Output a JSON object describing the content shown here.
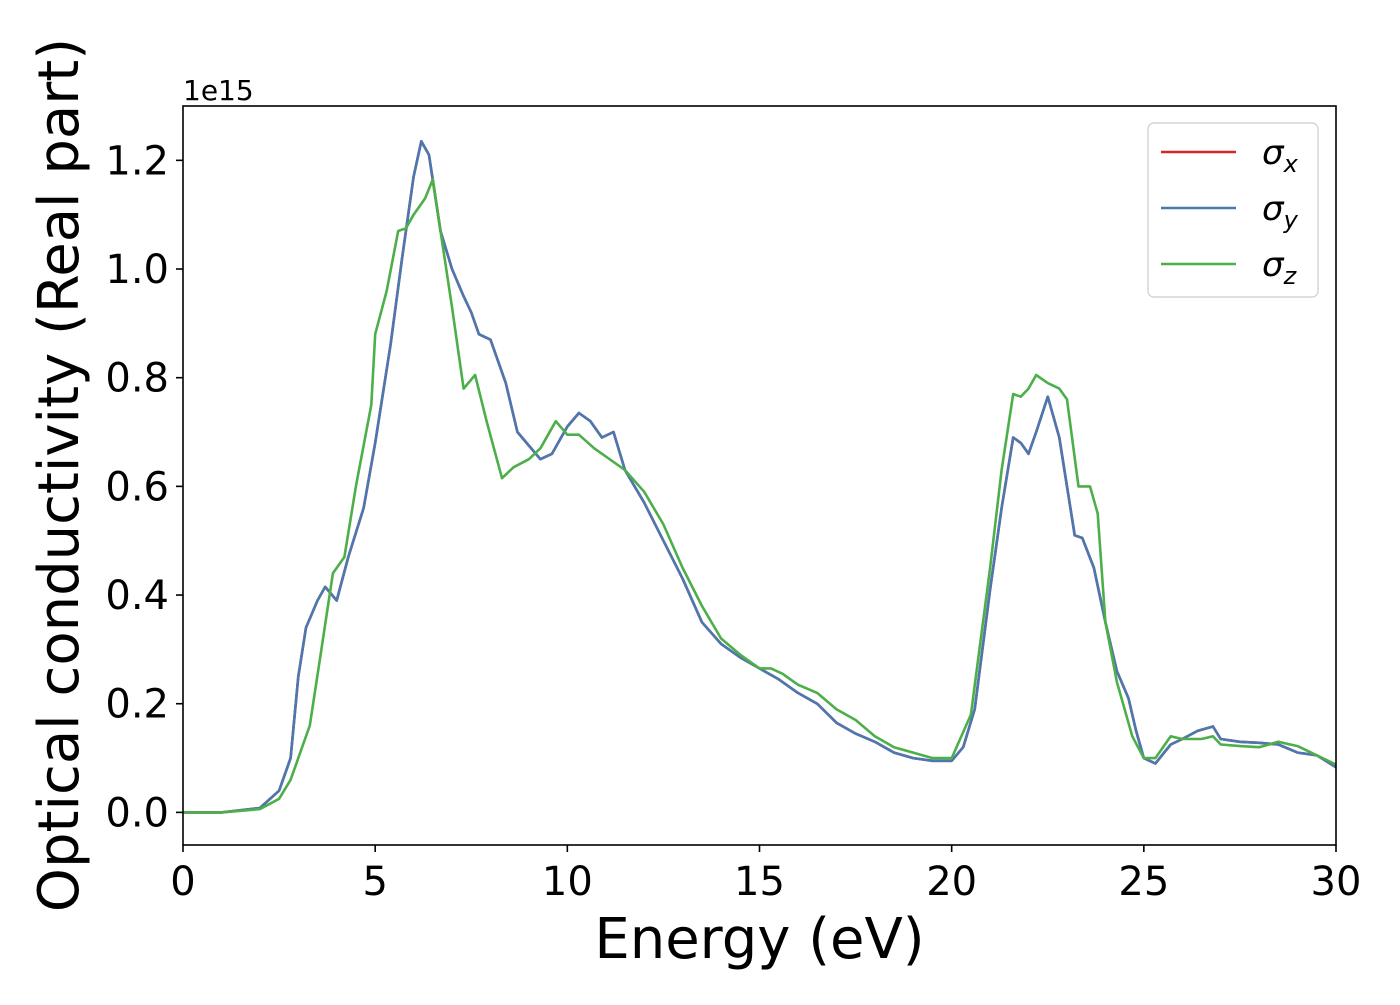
{
  "chart_data": {
    "type": "line",
    "title": "",
    "xlabel": "Energy (eV)",
    "ylabel": "Optical conductivity (Real part)",
    "y_offset_label": "1e15",
    "xlim": [
      0,
      30
    ],
    "ylim": [
      -0.06,
      1.3
    ],
    "xticks": [
      0,
      5,
      10,
      15,
      20,
      25,
      30
    ],
    "xtick_labels": [
      "0",
      "5",
      "10",
      "15",
      "20",
      "25",
      "30"
    ],
    "yticks": [
      0.0,
      0.2,
      0.4,
      0.6,
      0.8,
      1.0,
      1.2
    ],
    "ytick_labels": [
      "0.0",
      "0.2",
      "0.4",
      "0.6",
      "0.8",
      "1.0",
      "1.2"
    ],
    "grid": false,
    "legend": {
      "placement": "top-right",
      "entries": [
        {
          "symbol": "σ",
          "sub": "x",
          "color": "#d62728"
        },
        {
          "symbol": "σ",
          "sub": "y",
          "color": "#4a78b0"
        },
        {
          "symbol": "σ",
          "sub": "z",
          "color": "#4daf4a"
        }
      ]
    },
    "series": [
      {
        "key": "sigma_x",
        "color": "#d62728",
        "points": [
          [
            0,
            0.0
          ],
          [
            1,
            0.0
          ],
          [
            2,
            0.008
          ],
          [
            2.5,
            0.04
          ],
          [
            2.8,
            0.1
          ],
          [
            3.0,
            0.25
          ],
          [
            3.2,
            0.34
          ],
          [
            3.5,
            0.39
          ],
          [
            3.7,
            0.415
          ],
          [
            4.0,
            0.39
          ],
          [
            4.3,
            0.47
          ],
          [
            4.7,
            0.56
          ],
          [
            5.0,
            0.68
          ],
          [
            5.4,
            0.86
          ],
          [
            5.7,
            1.02
          ],
          [
            6.0,
            1.17
          ],
          [
            6.2,
            1.235
          ],
          [
            6.4,
            1.21
          ],
          [
            6.7,
            1.07
          ],
          [
            7.0,
            1.0
          ],
          [
            7.3,
            0.95
          ],
          [
            7.5,
            0.92
          ],
          [
            7.7,
            0.88
          ],
          [
            8.0,
            0.87
          ],
          [
            8.4,
            0.79
          ],
          [
            8.7,
            0.7
          ],
          [
            9.0,
            0.675
          ],
          [
            9.3,
            0.65
          ],
          [
            9.6,
            0.66
          ],
          [
            10.0,
            0.71
          ],
          [
            10.3,
            0.735
          ],
          [
            10.6,
            0.72
          ],
          [
            10.9,
            0.69
          ],
          [
            11.2,
            0.7
          ],
          [
            11.5,
            0.63
          ],
          [
            12.0,
            0.57
          ],
          [
            12.5,
            0.5
          ],
          [
            13.0,
            0.43
          ],
          [
            13.5,
            0.35
          ],
          [
            14.0,
            0.31
          ],
          [
            14.5,
            0.285
          ],
          [
            15.0,
            0.265
          ],
          [
            15.5,
            0.245
          ],
          [
            16.0,
            0.22
          ],
          [
            16.5,
            0.2
          ],
          [
            17.0,
            0.165
          ],
          [
            17.5,
            0.145
          ],
          [
            18.0,
            0.13
          ],
          [
            18.5,
            0.11
          ],
          [
            19.0,
            0.1
          ],
          [
            19.5,
            0.095
          ],
          [
            20.0,
            0.095
          ],
          [
            20.3,
            0.12
          ],
          [
            20.6,
            0.19
          ],
          [
            21.0,
            0.41
          ],
          [
            21.3,
            0.56
          ],
          [
            21.6,
            0.69
          ],
          [
            21.8,
            0.68
          ],
          [
            22.0,
            0.66
          ],
          [
            22.2,
            0.7
          ],
          [
            22.5,
            0.765
          ],
          [
            22.8,
            0.69
          ],
          [
            23.0,
            0.6
          ],
          [
            23.2,
            0.51
          ],
          [
            23.4,
            0.505
          ],
          [
            23.7,
            0.45
          ],
          [
            24.0,
            0.35
          ],
          [
            24.3,
            0.26
          ],
          [
            24.6,
            0.21
          ],
          [
            24.8,
            0.15
          ],
          [
            25.0,
            0.1
          ],
          [
            25.3,
            0.09
          ],
          [
            25.7,
            0.125
          ],
          [
            26.0,
            0.135
          ],
          [
            26.4,
            0.15
          ],
          [
            26.8,
            0.158
          ],
          [
            27.0,
            0.135
          ],
          [
            27.5,
            0.13
          ],
          [
            28.0,
            0.128
          ],
          [
            28.5,
            0.125
          ],
          [
            29.0,
            0.11
          ],
          [
            29.5,
            0.105
          ],
          [
            30.0,
            0.083
          ]
        ]
      },
      {
        "key": "sigma_y",
        "color": "#4a78b0",
        "points": [
          [
            0,
            0.0
          ],
          [
            1,
            0.0
          ],
          [
            2,
            0.008
          ],
          [
            2.5,
            0.04
          ],
          [
            2.8,
            0.1
          ],
          [
            3.0,
            0.25
          ],
          [
            3.2,
            0.34
          ],
          [
            3.5,
            0.39
          ],
          [
            3.7,
            0.415
          ],
          [
            4.0,
            0.39
          ],
          [
            4.3,
            0.47
          ],
          [
            4.7,
            0.56
          ],
          [
            5.0,
            0.68
          ],
          [
            5.4,
            0.86
          ],
          [
            5.7,
            1.02
          ],
          [
            6.0,
            1.17
          ],
          [
            6.2,
            1.235
          ],
          [
            6.4,
            1.21
          ],
          [
            6.7,
            1.07
          ],
          [
            7.0,
            1.0
          ],
          [
            7.3,
            0.95
          ],
          [
            7.5,
            0.92
          ],
          [
            7.7,
            0.88
          ],
          [
            8.0,
            0.87
          ],
          [
            8.4,
            0.79
          ],
          [
            8.7,
            0.7
          ],
          [
            9.0,
            0.675
          ],
          [
            9.3,
            0.65
          ],
          [
            9.6,
            0.66
          ],
          [
            10.0,
            0.71
          ],
          [
            10.3,
            0.735
          ],
          [
            10.6,
            0.72
          ],
          [
            10.9,
            0.69
          ],
          [
            11.2,
            0.7
          ],
          [
            11.5,
            0.63
          ],
          [
            12.0,
            0.57
          ],
          [
            12.5,
            0.5
          ],
          [
            13.0,
            0.43
          ],
          [
            13.5,
            0.35
          ],
          [
            14.0,
            0.31
          ],
          [
            14.5,
            0.285
          ],
          [
            15.0,
            0.265
          ],
          [
            15.5,
            0.245
          ],
          [
            16.0,
            0.22
          ],
          [
            16.5,
            0.2
          ],
          [
            17.0,
            0.165
          ],
          [
            17.5,
            0.145
          ],
          [
            18.0,
            0.13
          ],
          [
            18.5,
            0.11
          ],
          [
            19.0,
            0.1
          ],
          [
            19.5,
            0.095
          ],
          [
            20.0,
            0.095
          ],
          [
            20.3,
            0.12
          ],
          [
            20.6,
            0.19
          ],
          [
            21.0,
            0.41
          ],
          [
            21.3,
            0.56
          ],
          [
            21.6,
            0.69
          ],
          [
            21.8,
            0.68
          ],
          [
            22.0,
            0.66
          ],
          [
            22.2,
            0.7
          ],
          [
            22.5,
            0.765
          ],
          [
            22.8,
            0.69
          ],
          [
            23.0,
            0.6
          ],
          [
            23.2,
            0.51
          ],
          [
            23.4,
            0.505
          ],
          [
            23.7,
            0.45
          ],
          [
            24.0,
            0.35
          ],
          [
            24.3,
            0.26
          ],
          [
            24.6,
            0.21
          ],
          [
            24.8,
            0.15
          ],
          [
            25.0,
            0.1
          ],
          [
            25.3,
            0.09
          ],
          [
            25.7,
            0.125
          ],
          [
            26.0,
            0.135
          ],
          [
            26.4,
            0.15
          ],
          [
            26.8,
            0.158
          ],
          [
            27.0,
            0.135
          ],
          [
            27.5,
            0.13
          ],
          [
            28.0,
            0.128
          ],
          [
            28.5,
            0.125
          ],
          [
            29.0,
            0.11
          ],
          [
            29.5,
            0.105
          ],
          [
            30.0,
            0.083
          ]
        ]
      },
      {
        "key": "sigma_z",
        "color": "#4daf4a",
        "points": [
          [
            0,
            0.0
          ],
          [
            1,
            0.0
          ],
          [
            2,
            0.006
          ],
          [
            2.5,
            0.025
          ],
          [
            2.8,
            0.06
          ],
          [
            3.0,
            0.1
          ],
          [
            3.3,
            0.16
          ],
          [
            3.6,
            0.3
          ],
          [
            3.9,
            0.44
          ],
          [
            4.2,
            0.47
          ],
          [
            4.5,
            0.6
          ],
          [
            4.9,
            0.75
          ],
          [
            5.0,
            0.88
          ],
          [
            5.3,
            0.96
          ],
          [
            5.6,
            1.07
          ],
          [
            5.8,
            1.075
          ],
          [
            6.0,
            1.1
          ],
          [
            6.3,
            1.13
          ],
          [
            6.5,
            1.165
          ],
          [
            6.7,
            1.07
          ],
          [
            7.0,
            0.93
          ],
          [
            7.3,
            0.78
          ],
          [
            7.6,
            0.805
          ],
          [
            7.9,
            0.72
          ],
          [
            8.3,
            0.615
          ],
          [
            8.6,
            0.635
          ],
          [
            9.0,
            0.65
          ],
          [
            9.3,
            0.67
          ],
          [
            9.7,
            0.72
          ],
          [
            10.0,
            0.695
          ],
          [
            10.3,
            0.695
          ],
          [
            10.7,
            0.67
          ],
          [
            11.0,
            0.655
          ],
          [
            11.5,
            0.63
          ],
          [
            12.0,
            0.59
          ],
          [
            12.5,
            0.53
          ],
          [
            13.0,
            0.45
          ],
          [
            13.5,
            0.38
          ],
          [
            14.0,
            0.32
          ],
          [
            14.5,
            0.29
          ],
          [
            15.0,
            0.265
          ],
          [
            15.3,
            0.265
          ],
          [
            15.6,
            0.255
          ],
          [
            16.0,
            0.235
          ],
          [
            16.5,
            0.22
          ],
          [
            17.0,
            0.19
          ],
          [
            17.5,
            0.17
          ],
          [
            18.0,
            0.14
          ],
          [
            18.5,
            0.12
          ],
          [
            19.0,
            0.11
          ],
          [
            19.5,
            0.1
          ],
          [
            20.0,
            0.1
          ],
          [
            20.5,
            0.18
          ],
          [
            21.0,
            0.45
          ],
          [
            21.3,
            0.63
          ],
          [
            21.6,
            0.77
          ],
          [
            21.8,
            0.765
          ],
          [
            22.0,
            0.78
          ],
          [
            22.2,
            0.805
          ],
          [
            22.5,
            0.79
          ],
          [
            22.8,
            0.78
          ],
          [
            23.0,
            0.76
          ],
          [
            23.3,
            0.6
          ],
          [
            23.6,
            0.6
          ],
          [
            23.8,
            0.55
          ],
          [
            24.0,
            0.35
          ],
          [
            24.3,
            0.24
          ],
          [
            24.7,
            0.14
          ],
          [
            25.0,
            0.1
          ],
          [
            25.3,
            0.1
          ],
          [
            25.7,
            0.14
          ],
          [
            26.0,
            0.135
          ],
          [
            26.5,
            0.135
          ],
          [
            26.8,
            0.14
          ],
          [
            27.0,
            0.125
          ],
          [
            27.5,
            0.122
          ],
          [
            28.0,
            0.12
          ],
          [
            28.5,
            0.13
          ],
          [
            29.0,
            0.122
          ],
          [
            29.5,
            0.105
          ],
          [
            30.0,
            0.088
          ]
        ]
      }
    ]
  }
}
